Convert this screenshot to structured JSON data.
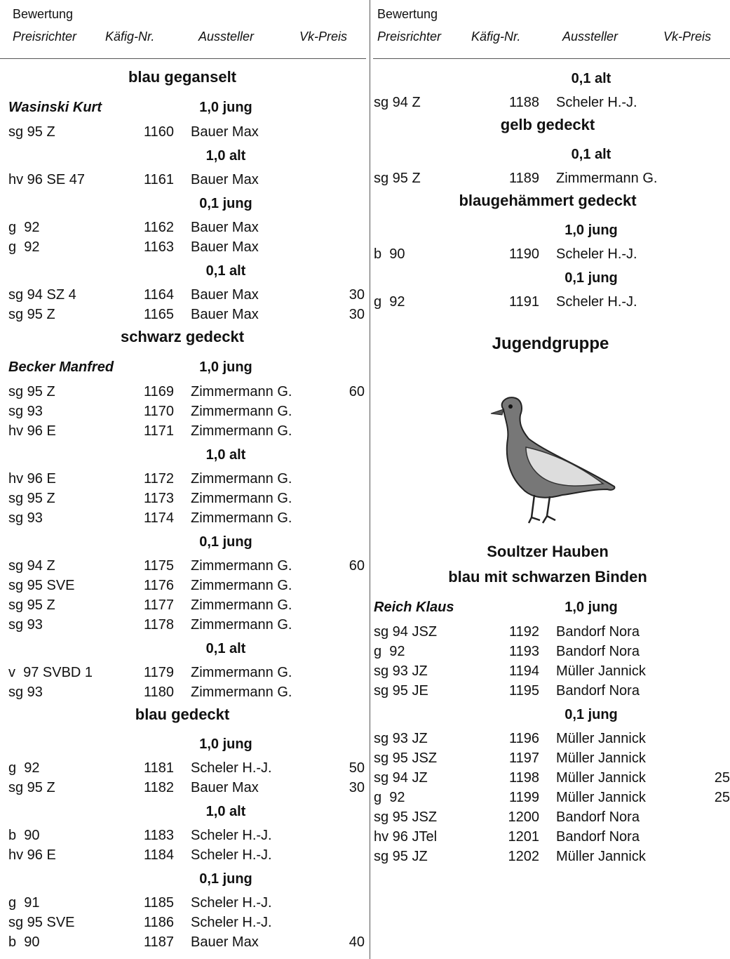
{
  "header": {
    "left": {
      "rating": "Bewertung",
      "columns": [
        "Preisrichter",
        "Käfig-Nr.",
        "Aussteller",
        "Vk-Preis"
      ]
    },
    "right": {
      "rating": "Bewertung",
      "columns": [
        "Preisrichter",
        "Käfig-Nr.",
        "Aussteller",
        "Vk-Preis"
      ]
    }
  },
  "left": [
    {
      "section": "blau geganselt"
    },
    {
      "judge": "Wasinski Kurt",
      "class": "1,0 jung"
    },
    {
      "entry": [
        "sg 95 Z",
        1160,
        "Bauer Max"
      ]
    },
    {
      "class": "1,0 alt"
    },
    {
      "entry": [
        "hv 96 SE 47",
        1161,
        "Bauer Max"
      ]
    },
    {
      "class": "0,1 jung"
    },
    {
      "entry": [
        "g  92",
        1162,
        "Bauer Max"
      ]
    },
    {
      "entry": [
        "g  92",
        1163,
        "Bauer Max"
      ]
    },
    {
      "class": "0,1 alt"
    },
    {
      "entry": [
        "sg 94 SZ 4",
        1164,
        "Bauer Max",
        30
      ]
    },
    {
      "entry": [
        "sg 95 Z",
        1165,
        "Bauer Max",
        30
      ]
    },
    {
      "section": "schwarz gedeckt"
    },
    {
      "judge": "Becker Manfred",
      "class": "1,0 jung"
    },
    {
      "entry": [
        "sg 95 Z",
        1169,
        "Zimmermann G.",
        60
      ]
    },
    {
      "entry": [
        "sg 93",
        1170,
        "Zimmermann G."
      ]
    },
    {
      "entry": [
        "hv 96 E",
        1171,
        "Zimmermann G."
      ]
    },
    {
      "class": "1,0 alt"
    },
    {
      "entry": [
        "hv 96 E",
        1172,
        "Zimmermann G."
      ]
    },
    {
      "entry": [
        "sg 95 Z",
        1173,
        "Zimmermann G."
      ]
    },
    {
      "entry": [
        "sg 93",
        1174,
        "Zimmermann G."
      ]
    },
    {
      "class": "0,1 jung"
    },
    {
      "entry": [
        "sg 94 Z",
        1175,
        "Zimmermann G.",
        60
      ]
    },
    {
      "entry": [
        "sg 95 SVE",
        1176,
        "Zimmermann G."
      ]
    },
    {
      "entry": [
        "sg 95 Z",
        1177,
        "Zimmermann G."
      ]
    },
    {
      "entry": [
        "sg 93",
        1178,
        "Zimmermann G."
      ]
    },
    {
      "class": "0,1 alt"
    },
    {
      "entry": [
        "v  97 SVBD 1",
        1179,
        "Zimmermann G."
      ]
    },
    {
      "entry": [
        "sg 93",
        1180,
        "Zimmermann G."
      ]
    },
    {
      "section": "blau gedeckt"
    },
    {
      "class": "1,0 jung"
    },
    {
      "entry": [
        "g  92",
        1181,
        "Scheler H.-J.",
        50
      ]
    },
    {
      "entry": [
        "sg 95 Z",
        1182,
        "Bauer Max",
        30
      ]
    },
    {
      "class": "1,0 alt"
    },
    {
      "entry": [
        "b  90",
        1183,
        "Scheler H.-J."
      ]
    },
    {
      "entry": [
        "hv 96 E",
        1184,
        "Scheler H.-J."
      ]
    },
    {
      "class": "0,1 jung"
    },
    {
      "entry": [
        "g  91",
        1185,
        "Scheler H.-J."
      ]
    },
    {
      "entry": [
        "sg 95 SVE",
        1186,
        "Scheler H.-J."
      ]
    },
    {
      "entry": [
        "b  90",
        1187,
        "Bauer Max",
        40
      ]
    }
  ],
  "right": [
    {
      "class": "0,1 alt"
    },
    {
      "entry": [
        "sg 94 Z",
        1188,
        "Scheler H.-J."
      ]
    },
    {
      "section": "gelb gedeckt"
    },
    {
      "class": "0,1 alt"
    },
    {
      "entry": [
        "sg 95 Z",
        1189,
        "Zimmermann G."
      ]
    },
    {
      "section": "blaugehämmert gedeckt"
    },
    {
      "class": "1,0 jung"
    },
    {
      "entry": [
        "b  90",
        1190,
        "Scheler H.-J."
      ]
    },
    {
      "class": "0,1 jung"
    },
    {
      "entry": [
        "g  92",
        1191,
        "Scheler H.-J."
      ]
    }
  ],
  "youth": {
    "title": "Jugendgruppe",
    "blocks": [
      {
        "section": "Soultzer Hauben"
      },
      {
        "section": "blau mit schwarzen Binden"
      },
      {
        "judge": "Reich Klaus",
        "class": "1,0 jung"
      },
      {
        "entry": [
          "sg 94 JSZ",
          1192,
          "Bandorf Nora"
        ]
      },
      {
        "entry": [
          "g  92",
          1193,
          "Bandorf Nora"
        ]
      },
      {
        "entry": [
          "sg 93 JZ",
          1194,
          "Müller Jannick"
        ]
      },
      {
        "entry": [
          "sg 95 JE",
          1195,
          "Bandorf Nora"
        ]
      },
      {
        "class": "0,1 jung"
      },
      {
        "entry": [
          "sg 93 JZ",
          1196,
          "Müller Jannick"
        ]
      },
      {
        "entry": [
          "sg 95 JSZ",
          1197,
          "Müller Jannick"
        ]
      },
      {
        "entry": [
          "sg 94 JZ",
          1198,
          "Müller Jannick",
          25
        ]
      },
      {
        "entry": [
          "g  92",
          1199,
          "Müller Jannick",
          25
        ]
      },
      {
        "entry": [
          "sg 95 JSZ",
          1200,
          "Bandorf Nora"
        ]
      },
      {
        "entry": [
          "hv 96 JTel",
          1201,
          "Bandorf Nora"
        ]
      },
      {
        "entry": [
          "sg 95 JZ",
          1202,
          "Müller Jannick"
        ]
      }
    ]
  }
}
